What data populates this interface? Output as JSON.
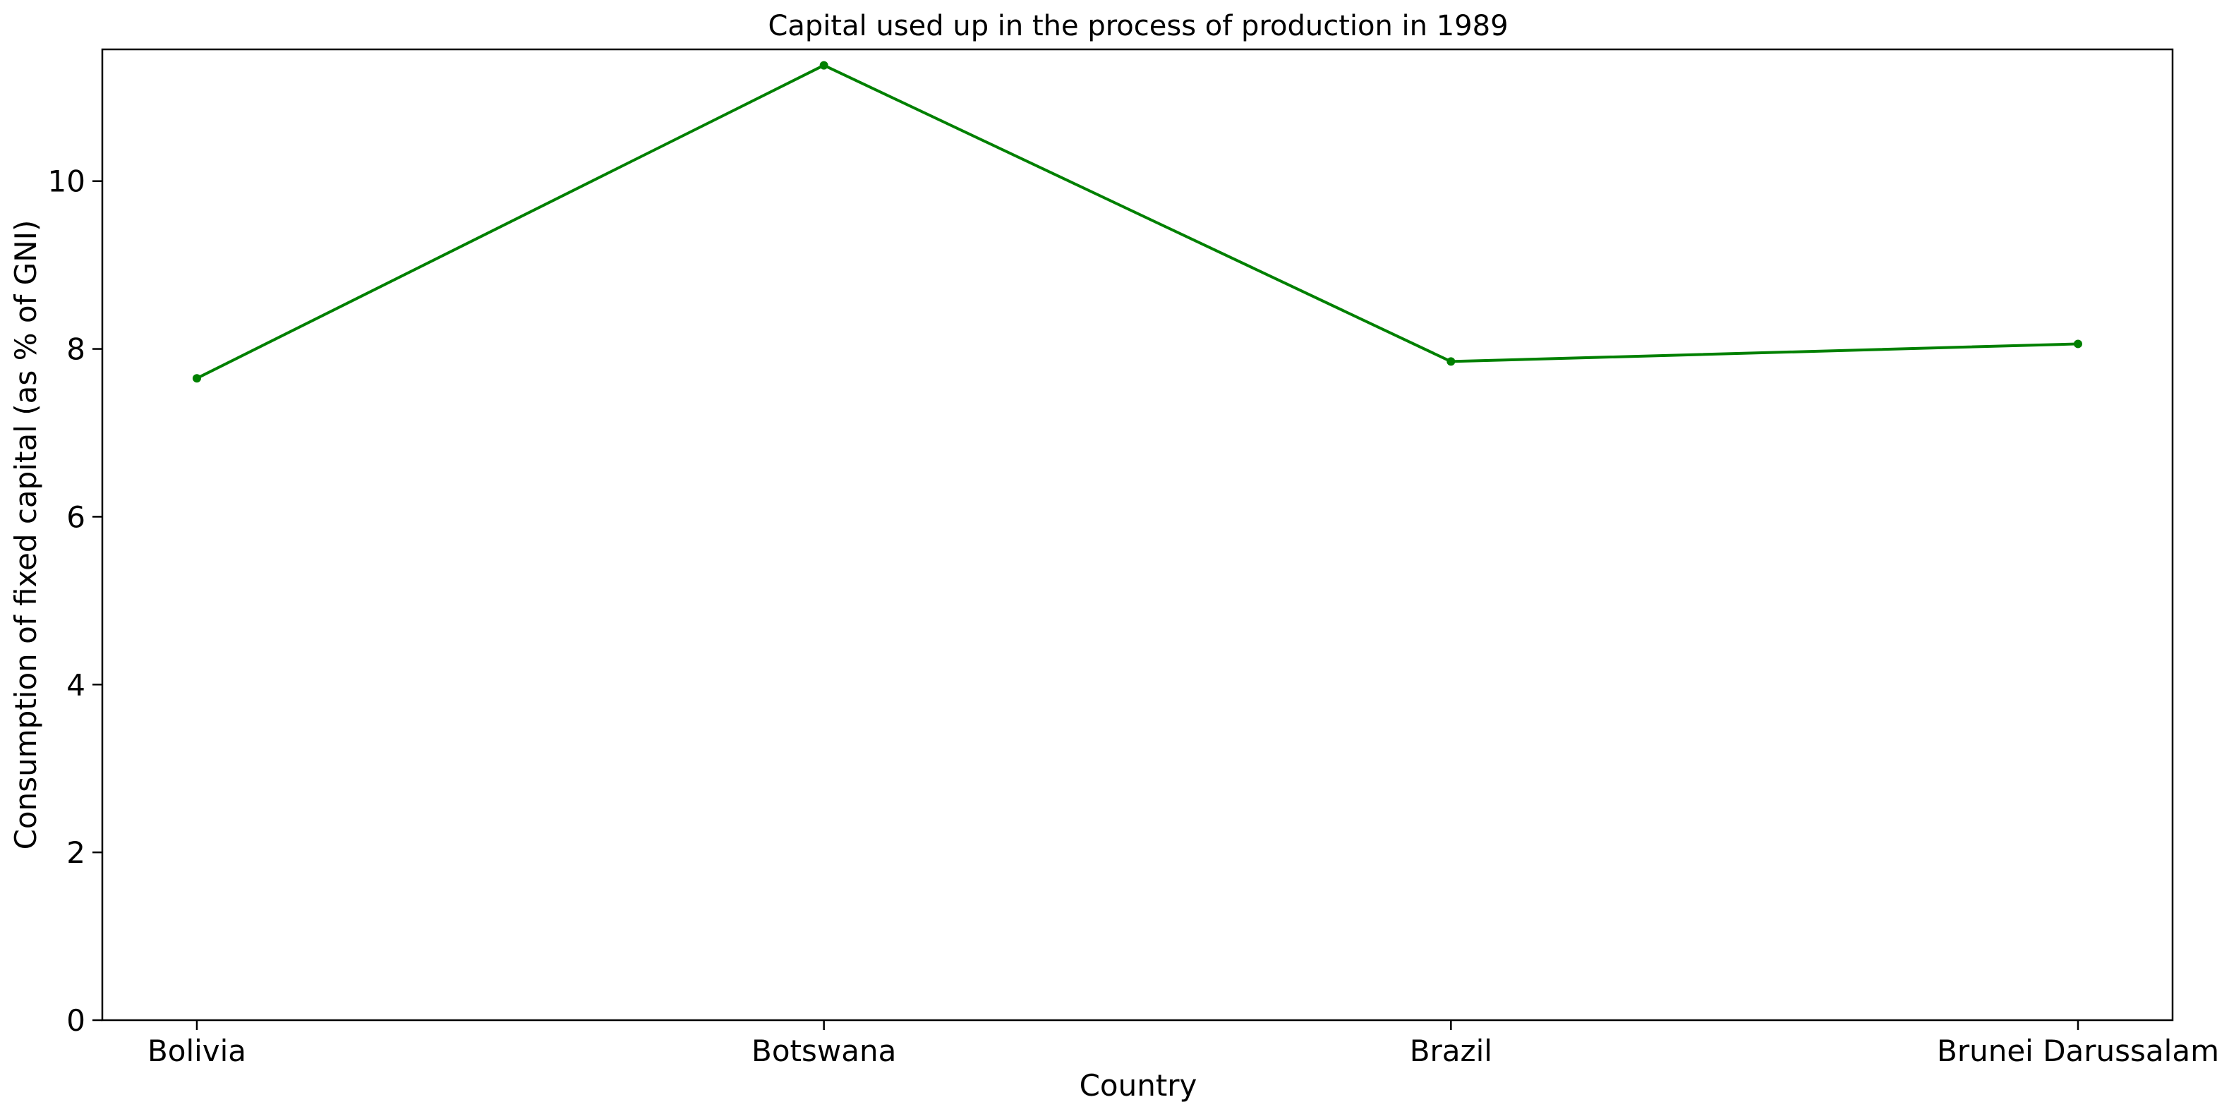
{
  "chart_data": {
    "type": "line",
    "title": "Capital used up in the process of production in 1989",
    "xlabel": "Country",
    "ylabel": "Consumption of fixed capital (as % of GNI)",
    "categories": [
      "Bolivia",
      "Botswana",
      "Brazil",
      "Brunei Darussalam"
    ],
    "series": [
      {
        "values": [
          7.65,
          11.38,
          7.85,
          8.06
        ],
        "color": "#008000"
      }
    ],
    "ylim": [
      0,
      11.57
    ],
    "yticks": [
      0,
      2,
      4,
      6,
      8,
      10
    ],
    "grid": false,
    "legend": "none"
  }
}
